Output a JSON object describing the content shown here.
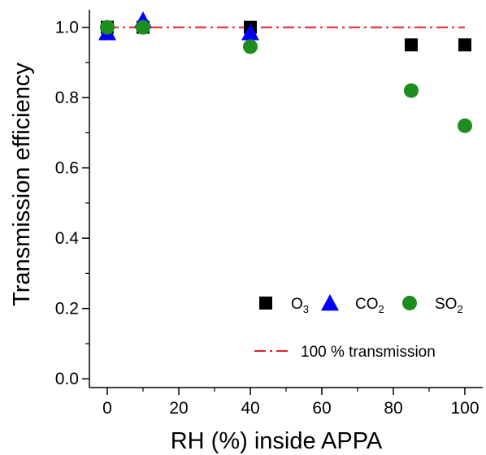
{
  "chart_data": {
    "type": "scatter",
    "title": "",
    "xlabel": "RH (%) inside APPA",
    "ylabel": "Transmission efficiency",
    "xlim": [
      -5,
      105
    ],
    "ylim": [
      -0.025,
      1.05
    ],
    "xticks": [
      0,
      20,
      40,
      60,
      80,
      100
    ],
    "yticks": [
      0.0,
      0.2,
      0.4,
      0.6,
      0.8,
      1.0
    ],
    "xtick_labels": [
      "0",
      "20",
      "40",
      "60",
      "80",
      "100"
    ],
    "ytick_labels": [
      "0.0",
      "0.2",
      "0.4",
      "0.6",
      "0.8",
      "1.0"
    ],
    "grid": false,
    "legend_position": "bottom-right",
    "series": [
      {
        "name": "O3",
        "name_main": "O",
        "name_sub": "3",
        "marker": "square",
        "color": "#000000",
        "x": [
          0,
          10,
          40,
          85,
          100
        ],
        "y": [
          1.0,
          1.0,
          1.0,
          0.95,
          0.95
        ]
      },
      {
        "name": "CO2",
        "name_main": "CO",
        "name_sub": "2",
        "marker": "triangle",
        "color": "#0000ff",
        "x": [
          0,
          10,
          40
        ],
        "y": [
          0.985,
          1.02,
          0.985
        ]
      },
      {
        "name": "SO2",
        "name_main": "SO",
        "name_sub": "2",
        "marker": "circle",
        "color": "#1e8c1e",
        "x": [
          0,
          10,
          40,
          85,
          100
        ],
        "y": [
          1.0,
          1.0,
          0.945,
          0.82,
          0.72
        ]
      }
    ],
    "reference_line": {
      "name": "100 % transmission",
      "y": 1.0,
      "color": "#e8202a",
      "style": "dash-dot"
    }
  }
}
